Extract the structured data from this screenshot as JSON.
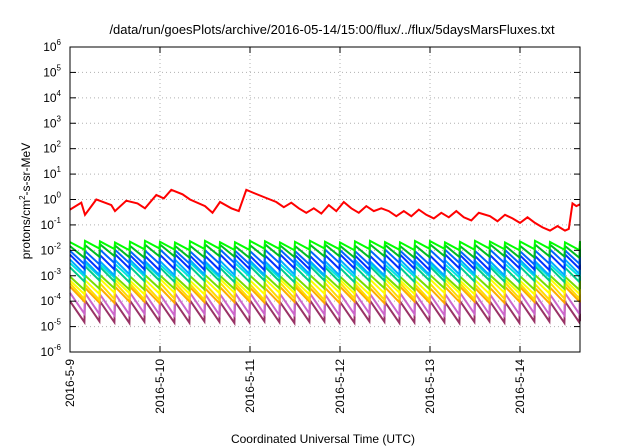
{
  "chart_data": {
    "type": "line",
    "title": "/data/run/goesPlots/archive/2016-05-14/15:00/flux/../flux/5daysMarsFluxes.txt",
    "xlabel": "Coordinated Universal Time (UTC)",
    "ylabel": "protons/cm²-s-sr-MeV",
    "ylabel_parts": {
      "base": "protons/cm",
      "sup": "2",
      "rest": "-s-sr-MeV"
    },
    "yscale": "log",
    "ylim": [
      "1e-6",
      "1e6"
    ],
    "xlim": [
      "2016-05-09",
      "2016-05-14 16:00"
    ],
    "grid": true,
    "x_ticks": [
      "2016-5-9",
      "2016-5-10",
      "2016-5-11",
      "2016-5-12",
      "2016-5-13",
      "2016-5-14"
    ],
    "y_ticks": [
      {
        "base": "10",
        "exp": "-6"
      },
      {
        "base": "10",
        "exp": "-5"
      },
      {
        "base": "10",
        "exp": "-4"
      },
      {
        "base": "10",
        "exp": "-3"
      },
      {
        "base": "10",
        "exp": "-2"
      },
      {
        "base": "10",
        "exp": "-1"
      },
      {
        "base": "10",
        "exp": "0"
      },
      {
        "base": "10",
        "exp": "1"
      },
      {
        "base": "10",
        "exp": "2"
      },
      {
        "base": "10",
        "exp": "3"
      },
      {
        "base": "10",
        "exp": "4"
      },
      {
        "base": "10",
        "exp": "5"
      },
      {
        "base": "10",
        "exp": "6"
      }
    ],
    "sawtooth_hours": 4,
    "series": [
      {
        "color": "#ff0000",
        "points": [
          [
            "2016-05-09 00:00",
            0.4
          ],
          [
            "2016-05-09 03:00",
            0.75
          ],
          [
            "2016-05-09 04:00",
            0.25
          ],
          [
            "2016-05-09 07:00",
            1.0
          ],
          [
            "2016-05-09 11:00",
            0.6
          ],
          [
            "2016-05-09 12:00",
            0.35
          ],
          [
            "2016-05-09 15:00",
            0.9
          ],
          [
            "2016-05-09 18:00",
            0.7
          ],
          [
            "2016-05-09 20:00",
            0.45
          ],
          [
            "2016-05-09 23:00",
            1.5
          ],
          [
            "2016-05-10 01:00",
            1.1
          ],
          [
            "2016-05-10 03:00",
            2.4
          ],
          [
            "2016-05-10 06:00",
            1.6
          ],
          [
            "2016-05-10 08:00",
            1.0
          ],
          [
            "2016-05-10 12:00",
            0.55
          ],
          [
            "2016-05-10 14:00",
            0.3
          ],
          [
            "2016-05-10 16:00",
            0.8
          ],
          [
            "2016-05-10 19:00",
            0.45
          ],
          [
            "2016-05-10 21:00",
            0.35
          ],
          [
            "2016-05-10 23:00",
            2.4
          ],
          [
            "2016-05-11 01:00",
            1.8
          ],
          [
            "2016-05-11 04:00",
            1.2
          ],
          [
            "2016-05-11 07:00",
            0.8
          ],
          [
            "2016-05-11 09:00",
            0.5
          ],
          [
            "2016-05-11 11:00",
            0.75
          ],
          [
            "2016-05-11 13:00",
            0.45
          ],
          [
            "2016-05-11 15:00",
            0.3
          ],
          [
            "2016-05-11 17:00",
            0.45
          ],
          [
            "2016-05-11 19:00",
            0.28
          ],
          [
            "2016-05-11 21:00",
            0.6
          ],
          [
            "2016-05-11 23:00",
            0.35
          ],
          [
            "2016-05-12 01:00",
            0.8
          ],
          [
            "2016-05-12 03:00",
            0.45
          ],
          [
            "2016-05-12 05:00",
            0.3
          ],
          [
            "2016-05-12 07:00",
            0.55
          ],
          [
            "2016-05-12 09:00",
            0.35
          ],
          [
            "2016-05-12 11:00",
            0.45
          ],
          [
            "2016-05-12 13:00",
            0.35
          ],
          [
            "2016-05-12 15:00",
            0.22
          ],
          [
            "2016-05-12 17:00",
            0.35
          ],
          [
            "2016-05-12 19:00",
            0.22
          ],
          [
            "2016-05-12 21:00",
            0.4
          ],
          [
            "2016-05-12 23:00",
            0.25
          ],
          [
            "2016-05-13 01:00",
            0.18
          ],
          [
            "2016-05-13 03:00",
            0.3
          ],
          [
            "2016-05-13 05:00",
            0.2
          ],
          [
            "2016-05-13 07:00",
            0.35
          ],
          [
            "2016-05-13 09:00",
            0.2
          ],
          [
            "2016-05-13 11:00",
            0.15
          ],
          [
            "2016-05-13 13:00",
            0.3
          ],
          [
            "2016-05-13 16:00",
            0.22
          ],
          [
            "2016-05-13 18:00",
            0.14
          ],
          [
            "2016-05-13 20:00",
            0.25
          ],
          [
            "2016-05-13 22:00",
            0.18
          ],
          [
            "2016-05-14 00:00",
            0.12
          ],
          [
            "2016-05-14 02:00",
            0.2
          ],
          [
            "2016-05-14 04:00",
            0.12
          ],
          [
            "2016-05-14 06:00",
            0.08
          ],
          [
            "2016-05-14 08:00",
            0.06
          ],
          [
            "2016-05-14 10:00",
            0.09
          ],
          [
            "2016-05-14 12:00",
            0.06
          ],
          [
            "2016-05-14 13:00",
            0.07
          ],
          [
            "2016-05-14 14:00",
            0.7
          ],
          [
            "2016-05-14 15:00",
            0.55
          ],
          [
            "2016-05-14 16:00",
            0.65
          ]
        ]
      },
      {
        "color": "#00ff00",
        "peak": 0.022,
        "trough": 0.011
      },
      {
        "color": "#00bb22",
        "peak": 0.016,
        "trough": 0.0055
      },
      {
        "color": "#0066ff",
        "peak": 0.01,
        "trough": 0.003
      },
      {
        "color": "#0033ff",
        "peak": 0.0065,
        "trough": 0.0018
      },
      {
        "color": "#00aaff",
        "peak": 0.004,
        "trough": 0.0011
      },
      {
        "color": "#00e5dd",
        "peak": 0.003,
        "trough": 0.0009
      },
      {
        "color": "#00cc88",
        "peak": 0.0022,
        "trough": 0.0006
      },
      {
        "color": "#77dd00",
        "peak": 0.001,
        "trough": 0.0003
      },
      {
        "color": "#ffff00",
        "peak": 0.0007,
        "trough": 0.0002
      },
      {
        "color": "#ffdd00",
        "peak": 0.0005,
        "trough": 0.00012
      },
      {
        "color": "#ffaa00",
        "peak": 0.00035,
        "trough": 9e-05
      },
      {
        "color": "#cc66cc",
        "peak": 0.0002,
        "trough": 3e-05
      },
      {
        "color": "#993366",
        "peak": 0.0001,
        "trough": 1.5e-05
      }
    ]
  }
}
